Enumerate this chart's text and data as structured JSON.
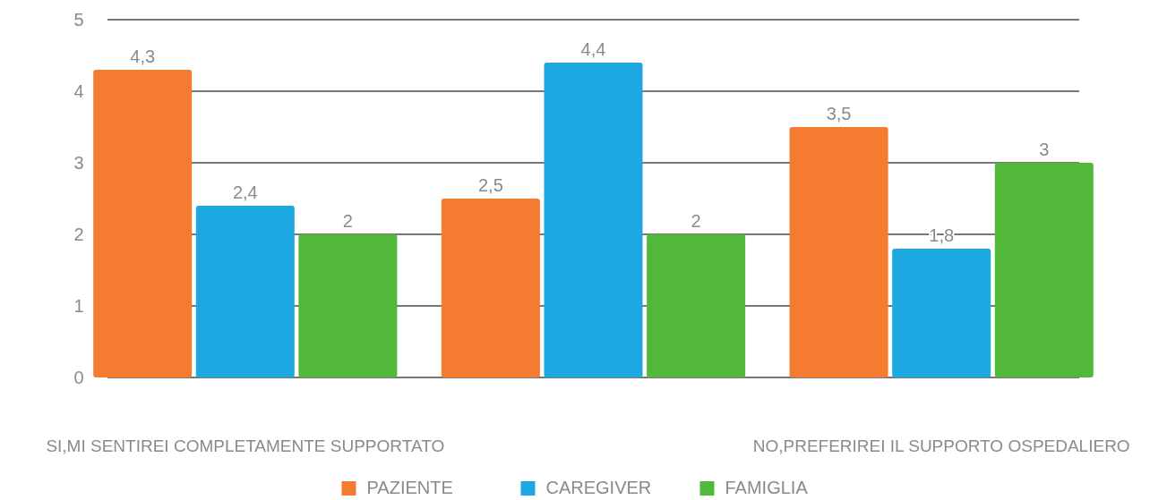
{
  "chart_data": {
    "type": "bar",
    "categories": [
      "SI,MI SENTIREI COMPLETAMENTE SUPPORTATO",
      null,
      "NO,PREFERIREI IL SUPPORTO OSPEDALIERO"
    ],
    "series": [
      {
        "name": "PAZIENTE",
        "color": "#f47b2f",
        "values": [
          4.3,
          2.5,
          3.5
        ],
        "value_labels": [
          "4,3",
          "2,5",
          "3,5"
        ]
      },
      {
        "name": "CAREGIVER",
        "color": "#1ea8e2",
        "values": [
          2.4,
          4.4,
          1.8
        ],
        "value_labels": [
          "2,4",
          "4,4",
          "1,8"
        ]
      },
      {
        "name": "FAMIGLIA",
        "color": "#52b83a",
        "values": [
          2,
          2,
          3
        ],
        "value_labels": [
          "2",
          "2",
          "3"
        ]
      }
    ],
    "ylim": [
      0,
      5
    ],
    "yticks": [
      0,
      1,
      2,
      3,
      4,
      5
    ],
    "grid": "y",
    "legend": "bottom"
  }
}
